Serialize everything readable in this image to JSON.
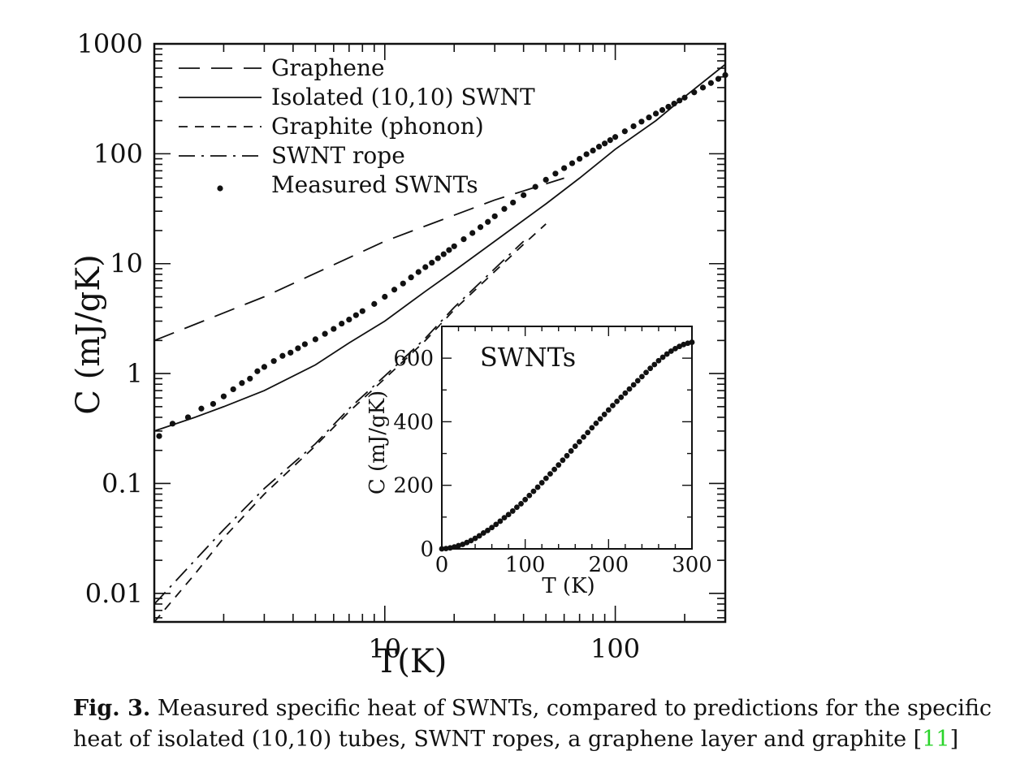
{
  "chart_data": [
    {
      "type": "line",
      "xlabel": "T(K)",
      "ylabel": "C (mJ/gK)",
      "xscale": "log",
      "yscale": "log",
      "xlim": [
        1,
        300
      ],
      "ylim": [
        0.0055,
        1000
      ],
      "x_tick_labels": [
        {
          "value": 10,
          "label": "10"
        },
        {
          "value": 100,
          "label": "100"
        }
      ],
      "y_tick_labels": [
        {
          "value": 1000,
          "label": "1000"
        },
        {
          "value": 100,
          "label": "100"
        },
        {
          "value": 10,
          "label": "10"
        },
        {
          "value": 1,
          "label": "1"
        },
        {
          "value": 0.1,
          "label": "0.1"
        },
        {
          "value": 0.01,
          "label": "0.01"
        }
      ],
      "legend_position": "top-left",
      "series": [
        {
          "name": "Graphene",
          "style": "long-dash",
          "x": [
            1,
            3,
            10,
            30,
            60
          ],
          "y": [
            2.0,
            5.0,
            16.0,
            38.0,
            60.0
          ]
        },
        {
          "name": "Isolated (10,10) SWNT",
          "style": "solid",
          "x": [
            1,
            1.5,
            2,
            3,
            5,
            7,
            10,
            15,
            20,
            30,
            50,
            70,
            100,
            150,
            200,
            300
          ],
          "y": [
            0.3,
            0.4,
            0.5,
            0.7,
            1.2,
            1.9,
            3.0,
            5.6,
            8.6,
            16.0,
            35.0,
            60.0,
            110.0,
            200.0,
            330.0,
            650.0
          ]
        },
        {
          "name": "Graphite (phonon)",
          "style": "short-dash",
          "x": [
            1,
            1.5,
            2,
            3,
            5,
            7,
            10,
            15,
            20,
            30,
            40,
            50
          ],
          "y": [
            0.0055,
            0.015,
            0.032,
            0.08,
            0.22,
            0.45,
            0.9,
            2.0,
            3.8,
            8.5,
            15.0,
            23.0
          ]
        },
        {
          "name": "SWNT rope",
          "style": "dash-dot",
          "x": [
            1,
            1.5,
            2,
            3,
            5,
            7,
            10,
            15,
            20,
            30,
            40
          ],
          "y": [
            0.008,
            0.02,
            0.038,
            0.09,
            0.23,
            0.48,
            0.95,
            2.1,
            4.0,
            9.0,
            16.0
          ]
        },
        {
          "name": "Measured SWNTs",
          "style": "dots",
          "x": [
            1.05,
            1.2,
            1.4,
            1.6,
            1.8,
            2.0,
            2.2,
            2.4,
            2.6,
            2.8,
            3.0,
            3.3,
            3.6,
            3.9,
            4.2,
            4.5,
            5.0,
            5.5,
            6.0,
            6.5,
            7.0,
            7.5,
            8.0,
            9.0,
            10.0,
            11.0,
            12.0,
            13.0,
            14.0,
            15.0,
            16.0,
            17.0,
            18.0,
            19.0,
            20.0,
            22.0,
            24.0,
            26.0,
            28.0,
            30.0,
            33.0,
            36.0,
            40.0,
            45.0,
            50.0,
            55.0,
            60.0,
            65.0,
            70.0,
            75.0,
            80.0,
            85.0,
            90.0,
            95.0,
            100.0,
            110.0,
            120.0,
            130.0,
            140.0,
            150.0,
            160.0,
            170.0,
            180.0,
            190.0,
            200.0,
            220.0,
            240.0,
            260.0,
            280.0,
            300.0
          ],
          "y": [
            0.27,
            0.35,
            0.4,
            0.48,
            0.53,
            0.62,
            0.72,
            0.82,
            0.9,
            1.05,
            1.15,
            1.3,
            1.45,
            1.55,
            1.7,
            1.85,
            2.05,
            2.3,
            2.55,
            2.85,
            3.1,
            3.4,
            3.7,
            4.3,
            5.0,
            5.8,
            6.6,
            7.5,
            8.4,
            9.3,
            10.2,
            11.2,
            12.2,
            13.3,
            14.4,
            16.7,
            19.0,
            21.5,
            24.0,
            27.0,
            31.5,
            36.0,
            42.0,
            50.0,
            58.0,
            66.0,
            74.0,
            82.0,
            90.0,
            99.0,
            107.0,
            116.0,
            124.0,
            133.0,
            142.0,
            160.0,
            178.0,
            196.0,
            214.0,
            232.0,
            250.0,
            268.0,
            286.0,
            305.0,
            324.0,
            362.0,
            400.0,
            440.0,
            480.0,
            520.0
          ]
        }
      ]
    },
    {
      "type": "scatter",
      "title": "SWNTs",
      "xlabel": "T (K)",
      "ylabel": "C (mJ/gK)",
      "xlim": [
        0,
        300
      ],
      "ylim": [
        0,
        700
      ],
      "x_tick_labels": [
        {
          "value": 0,
          "label": "0"
        },
        {
          "value": 100,
          "label": "100"
        },
        {
          "value": 200,
          "label": "200"
        },
        {
          "value": 300,
          "label": "300"
        }
      ],
      "y_tick_labels": [
        {
          "value": 0,
          "label": "0"
        },
        {
          "value": 200,
          "label": "200"
        },
        {
          "value": 400,
          "label": "400"
        },
        {
          "value": 600,
          "label": "600"
        }
      ],
      "series": [
        {
          "style": "dots",
          "x": [
            0,
            5,
            10,
            15,
            20,
            25,
            30,
            35,
            40,
            45,
            50,
            55,
            60,
            65,
            70,
            75,
            80,
            85,
            90,
            95,
            100,
            105,
            110,
            115,
            120,
            125,
            130,
            135,
            140,
            145,
            150,
            155,
            160,
            165,
            170,
            175,
            180,
            185,
            190,
            195,
            200,
            205,
            210,
            215,
            220,
            225,
            230,
            235,
            240,
            245,
            250,
            255,
            260,
            265,
            270,
            275,
            280,
            285,
            290,
            295,
            300
          ],
          "y": [
            0,
            1,
            3,
            6,
            10,
            14,
            20,
            26,
            33,
            41,
            50,
            58,
            67,
            77,
            87,
            98,
            108,
            119,
            131,
            142,
            155,
            168,
            181,
            194,
            208,
            222,
            236,
            250,
            264,
            279,
            293,
            308,
            323,
            337,
            352,
            366,
            381,
            395,
            409,
            423,
            437,
            451,
            464,
            477,
            490,
            503,
            516,
            529,
            542,
            555,
            568,
            580,
            592,
            603,
            613,
            622,
            630,
            637,
            643,
            647,
            650
          ]
        }
      ]
    }
  ],
  "caption": {
    "label": "Fig. 3.",
    "text": " Measured specific heat of SWNTs, compared to predictions for the specific heat of isolated (10,10) tubes, SWNT ropes, a graphene layer and graphite ",
    "ref_open": "[",
    "ref": "11",
    "ref_close": "]"
  },
  "colors": {
    "ink": "#111111",
    "reference_link": "#2bd42b"
  }
}
